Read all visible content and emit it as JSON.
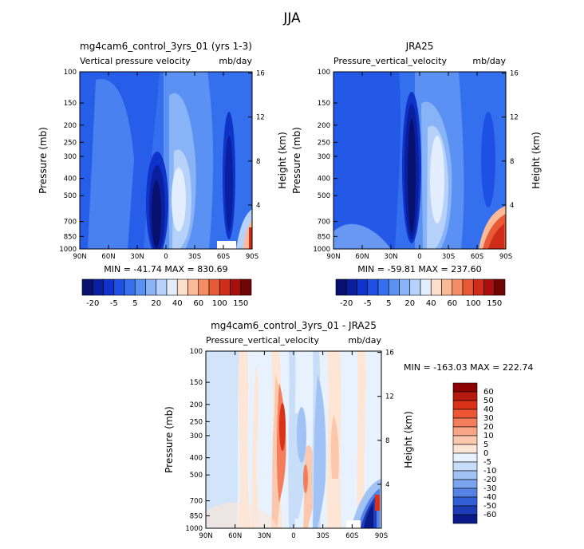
{
  "figure": {
    "title": "JJA"
  },
  "chart_data": [
    {
      "type": "heatmap",
      "id": "model",
      "title": "mg4cam6_control_3yrs_01 (yrs 1-3)",
      "left_label": "Vertical pressure velocity",
      "right_label": "mb/day",
      "ylabel": "Pressure (mb)",
      "ylabel2": "Height (km)",
      "x_ticks": [
        "90N",
        "60N",
        "30N",
        "0",
        "30S",
        "60S",
        "90S"
      ],
      "x_range": [
        90,
        -90
      ],
      "y_ticks": [
        "100",
        "150",
        "200",
        "250",
        "300",
        "400",
        "500",
        "700",
        "850",
        "1000"
      ],
      "y2_ticks": [
        "16",
        "12",
        "8",
        "4"
      ],
      "y_range_mb": [
        1000,
        100
      ],
      "stats": "MIN = -41.74   MAX = 830.69",
      "colorbar_labels": [
        "-20",
        "-5",
        "5",
        "20",
        "40",
        "60",
        "100",
        "150"
      ],
      "colorbar_colors": [
        "#08106e",
        "#0a1ea0",
        "#0f32c8",
        "#1e50e6",
        "#3470ee",
        "#5a91f2",
        "#88b3f6",
        "#b7d2fa",
        "#e2eefe",
        "#fde0cc",
        "#fbb997",
        "#f48d64",
        "#e85a36",
        "#cf2c1a",
        "#a80e0e",
        "#700505"
      ],
      "field": [
        {
          "lat": 90,
          "p_top": 100,
          "p_bot": 1000,
          "level": "#3470ee"
        },
        {
          "lat": -8,
          "p_top": 250,
          "p_bot": 850,
          "level": "#08106e"
        },
        {
          "lat": 15,
          "p_top": 250,
          "p_bot": 850,
          "level": "#b7d2fa"
        },
        {
          "lat": -70,
          "p_top": 150,
          "p_bot": 850,
          "level": "#0a1ea0"
        },
        {
          "lat": -85,
          "p_top": 700,
          "p_bot": 1000,
          "level": "#e85a36"
        }
      ]
    },
    {
      "type": "heatmap",
      "id": "obs",
      "title": "JRA25",
      "left_label": "Pressure_vertical_velocity",
      "right_label": "mb/day",
      "ylabel": "Pressure (mb)",
      "ylabel2": "Height (km)",
      "x_ticks": [
        "90N",
        "60N",
        "30N",
        "0",
        "30S",
        "60S",
        "90S"
      ],
      "x_range": [
        90,
        -90
      ],
      "y_ticks": [
        "100",
        "150",
        "200",
        "250",
        "300",
        "400",
        "500",
        "700",
        "850",
        "1000"
      ],
      "y2_ticks": [
        "16",
        "12",
        "8",
        "4"
      ],
      "y_range_mb": [
        1000,
        100
      ],
      "stats": "MIN = -59.81   MAX = 237.60",
      "colorbar_labels": [
        "-20",
        "-5",
        "5",
        "20",
        "40",
        "60",
        "100",
        "150"
      ],
      "colorbar_colors": [
        "#08106e",
        "#0a1ea0",
        "#0f32c8",
        "#1e50e6",
        "#3470ee",
        "#5a91f2",
        "#88b3f6",
        "#b7d2fa",
        "#e2eefe",
        "#fde0cc",
        "#fbb997",
        "#f48d64",
        "#e85a36",
        "#cf2c1a",
        "#a80e0e",
        "#700505"
      ],
      "field": [
        {
          "lat": 90,
          "p_top": 100,
          "p_bot": 1000,
          "level": "#3470ee"
        },
        {
          "lat": 8,
          "p_top": 150,
          "p_bot": 850,
          "level": "#08106e"
        },
        {
          "lat": -18,
          "p_top": 200,
          "p_bot": 850,
          "level": "#b7d2fa"
        },
        {
          "lat": -80,
          "p_top": 700,
          "p_bot": 1000,
          "level": "#e85a36"
        }
      ]
    },
    {
      "type": "heatmap",
      "id": "diff",
      "title": "mg4cam6_control_3yrs_01 - JRA25",
      "left_label": "Pressure_vertical_velocity",
      "right_label": "mb/day",
      "ylabel": "Pressure (mb)",
      "ylabel2": "Height (km)",
      "x_ticks": [
        "90N",
        "60N",
        "30N",
        "0",
        "30S",
        "60S",
        "90S"
      ],
      "x_range": [
        90,
        -90
      ],
      "y_ticks": [
        "100",
        "150",
        "200",
        "250",
        "300",
        "400",
        "500",
        "700",
        "850",
        "1000"
      ],
      "y2_ticks": [
        "16",
        "12",
        "8",
        "4"
      ],
      "y_range_mb": [
        1000,
        100
      ],
      "stats": "MIN = -163.03   MAX = 222.74",
      "colorbar_labels": [
        "60",
        "50",
        "40",
        "30",
        "20",
        "10",
        "5",
        "0",
        "-5",
        "-10",
        "-20",
        "-30",
        "-40",
        "-50",
        "-60"
      ],
      "colorbar_colors": [
        "#8b0000",
        "#b51a10",
        "#d93218",
        "#ee5535",
        "#f47e5c",
        "#f8a585",
        "#fbc8ad",
        "#fde6d6",
        "#e8f2fe",
        "#c8def8",
        "#a0c2f4",
        "#7aa4ee",
        "#5582e4",
        "#335fd6",
        "#1c3cb8",
        "#0a1a8a"
      ],
      "field": [
        {
          "lat": 90,
          "p_top": 100,
          "p_bot": 1000,
          "level": "#e8f2fe"
        },
        {
          "lat": 10,
          "p_top": 250,
          "p_bot": 700,
          "level": "#ee5535"
        },
        {
          "lat": -10,
          "p_top": 300,
          "p_bot": 850,
          "level": "#7aa4ee"
        },
        {
          "lat": -85,
          "p_top": 700,
          "p_bot": 1000,
          "level": "#0a1a8a"
        }
      ]
    }
  ]
}
